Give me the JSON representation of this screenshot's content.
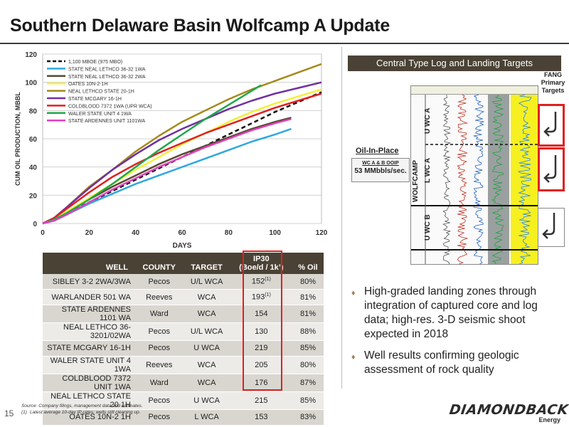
{
  "page": {
    "title": "Southern Delaware Basin Wolfcamp A Update",
    "page_number": "15"
  },
  "chart_data": {
    "type": "line",
    "xlabel": "DAYS",
    "ylabel": "CUM OIL PRODUCTION, MBBL",
    "xlim": [
      0,
      120
    ],
    "ylim": [
      0,
      120
    ],
    "xticks": [
      0,
      20,
      40,
      60,
      80,
      100,
      120
    ],
    "yticks": [
      0,
      20,
      40,
      60,
      80,
      100,
      120
    ],
    "grid": true,
    "legend_position": "top-left",
    "series": [
      {
        "name": "1,100 MBOE (975 MBO)",
        "color": "#111111",
        "dashed": true,
        "points": [
          [
            0,
            0
          ],
          [
            5,
            3
          ],
          [
            10,
            7
          ],
          [
            20,
            15
          ],
          [
            30,
            23
          ],
          [
            40,
            31
          ],
          [
            50,
            39
          ],
          [
            60,
            47
          ],
          [
            70,
            55
          ],
          [
            80,
            63
          ],
          [
            90,
            71
          ],
          [
            100,
            79
          ],
          [
            110,
            86
          ],
          [
            120,
            93
          ]
        ]
      },
      {
        "name": "STATE NEAL LETHCO 36-32 1WA",
        "color": "#2ea8e0",
        "points": [
          [
            0,
            0
          ],
          [
            5,
            2
          ],
          [
            10,
            6
          ],
          [
            20,
            14
          ],
          [
            30,
            21
          ],
          [
            40,
            28
          ],
          [
            50,
            34
          ],
          [
            60,
            40
          ],
          [
            70,
            46
          ],
          [
            80,
            52
          ],
          [
            90,
            58
          ],
          [
            100,
            63
          ],
          [
            107,
            67
          ]
        ]
      },
      {
        "name": "STATE NEAL LETHCO 36-32 2WA",
        "color": "#5a4a32",
        "points": [
          [
            0,
            0
          ],
          [
            5,
            3
          ],
          [
            10,
            8
          ],
          [
            20,
            17
          ],
          [
            30,
            26
          ],
          [
            40,
            34
          ],
          [
            50,
            42
          ],
          [
            60,
            49
          ],
          [
            70,
            55
          ],
          [
            80,
            61
          ],
          [
            90,
            67
          ],
          [
            100,
            72
          ],
          [
            107,
            75
          ]
        ]
      },
      {
        "name": "OATES 10N-2-1H",
        "color": "#f2f03a",
        "points": [
          [
            0,
            0
          ],
          [
            5,
            3
          ],
          [
            10,
            8
          ],
          [
            20,
            18
          ],
          [
            30,
            28
          ],
          [
            40,
            38
          ],
          [
            50,
            47
          ],
          [
            60,
            56
          ],
          [
            70,
            64
          ],
          [
            80,
            72
          ],
          [
            90,
            79
          ],
          [
            100,
            85
          ],
          [
            110,
            90
          ],
          [
            120,
            95
          ]
        ]
      },
      {
        "name": "NEAL LETHCO STATE 20-1H",
        "color": "#a68a1c",
        "points": [
          [
            0,
            0
          ],
          [
            5,
            4
          ],
          [
            10,
            11
          ],
          [
            20,
            26
          ],
          [
            30,
            38
          ],
          [
            40,
            51
          ],
          [
            50,
            62
          ],
          [
            60,
            72
          ],
          [
            70,
            80
          ],
          [
            80,
            88
          ],
          [
            90,
            95
          ],
          [
            100,
            101
          ],
          [
            110,
            107
          ],
          [
            120,
            113
          ]
        ]
      },
      {
        "name": "STATE MCGARY 16-1H",
        "color": "#7030a0",
        "points": [
          [
            0,
            0
          ],
          [
            5,
            4
          ],
          [
            10,
            11
          ],
          [
            20,
            25
          ],
          [
            30,
            38
          ],
          [
            40,
            49
          ],
          [
            50,
            59
          ],
          [
            60,
            67
          ],
          [
            70,
            74
          ],
          [
            80,
            81
          ],
          [
            90,
            87
          ],
          [
            100,
            92
          ],
          [
            110,
            96
          ],
          [
            120,
            100
          ]
        ]
      },
      {
        "name": "COLDBLOOD 7372 1WA (UPR WCA)",
        "color": "#e02020",
        "points": [
          [
            0,
            0
          ],
          [
            5,
            4
          ],
          [
            10,
            10
          ],
          [
            20,
            22
          ],
          [
            30,
            33
          ],
          [
            40,
            42
          ],
          [
            50,
            50
          ],
          [
            60,
            57
          ],
          [
            70,
            64
          ],
          [
            80,
            70
          ],
          [
            90,
            76
          ],
          [
            100,
            82
          ],
          [
            110,
            87
          ],
          [
            120,
            92
          ]
        ]
      },
      {
        "name": "WALER STATE UNIT 4 1WA",
        "color": "#1fa84a",
        "points": [
          [
            0,
            0
          ],
          [
            5,
            3
          ],
          [
            10,
            7
          ],
          [
            20,
            17
          ],
          [
            30,
            28
          ],
          [
            40,
            40
          ],
          [
            50,
            52
          ],
          [
            60,
            63
          ],
          [
            70,
            74
          ],
          [
            80,
            84
          ],
          [
            90,
            94
          ],
          [
            94,
            98
          ]
        ]
      },
      {
        "name": "STATE ARDENNES UNIT 1101WA",
        "color": "#e040c0",
        "points": [
          [
            0,
            0
          ],
          [
            5,
            2
          ],
          [
            10,
            6
          ],
          [
            20,
            15
          ],
          [
            30,
            24
          ],
          [
            40,
            32
          ],
          [
            50,
            40
          ],
          [
            60,
            47
          ],
          [
            70,
            54
          ],
          [
            80,
            60
          ],
          [
            90,
            66
          ],
          [
            100,
            71
          ],
          [
            107,
            74
          ]
        ]
      }
    ]
  },
  "table": {
    "headers": {
      "well": "WELL",
      "county": "COUNTY",
      "target": "TARGET",
      "ip30_line1": "IP30",
      "ip30_line2": "(Boe/d / 1k’)",
      "oil": "% Oil"
    },
    "rows": [
      {
        "well": "SIBLEY 3-2 2WA/3WA",
        "county": "Pecos",
        "target": "U/L WCA",
        "ip30": "152",
        "ip30_note": "(1)",
        "oil": "80%"
      },
      {
        "well": "WARLANDER 501 WA",
        "county": "Reeves",
        "target": "WCA",
        "ip30": "193",
        "ip30_note": "(1)",
        "oil": "81%"
      },
      {
        "well": "STATE ARDENNES 1101 WA",
        "county": "Ward",
        "target": "WCA",
        "ip30": "154",
        "ip30_note": "",
        "oil": "81%"
      },
      {
        "well": "NEAL LETHCO 36-3201/02WA",
        "county": "Pecos",
        "target": "U/L WCA",
        "ip30": "130",
        "ip30_note": "",
        "oil": "88%"
      },
      {
        "well": "STATE MCGARY 16-1H",
        "county": "Pecos",
        "target": "U WCA",
        "ip30": "219",
        "ip30_note": "",
        "oil": "85%"
      },
      {
        "well": "WALER STATE UNIT 4 1WA",
        "county": "Reeves",
        "target": "WCA",
        "ip30": "205",
        "ip30_note": "",
        "oil": "80%"
      },
      {
        "well": "COLDBLOOD 7372 UNIT 1WA",
        "county": "Ward",
        "target": "WCA",
        "ip30": "176",
        "ip30_note": "",
        "oil": "87%"
      },
      {
        "well": "NEAL LETHCO STATE 20 1H",
        "county": "Pecos",
        "target": "U WCA",
        "ip30": "215",
        "ip30_note": "",
        "oil": "85%"
      },
      {
        "well": "OATES 10N-2 1H",
        "county": "Pecos",
        "target": "L WCA",
        "ip30": "153",
        "ip30_note": "",
        "oil": "83%"
      }
    ]
  },
  "footnotes": {
    "source": "Source:  Company filings, management data and estimates.",
    "note1_label": "(1)",
    "note1": "Latest average 10-day IP-rates; wells still cleaning up."
  },
  "type_log": {
    "header": "Central Type Log and Landing Targets",
    "fang_label_line1": "FANG",
    "fang_label_line2": "Primary",
    "fang_label_line3": "Targets",
    "wolfcamp": "WOLFCAMP",
    "zones": [
      "U WC A",
      "L WC A",
      "U WC B"
    ],
    "oip_title": "Oil-In-Place",
    "oip_small": "WC A & B OOIP",
    "oip_value": "53 MMbbls/sec."
  },
  "bullets": [
    "High-graded landing zones through integration of captured core and log data; high-res. 3-D seismic shoot expected in 2018",
    "Well results confirming geologic assessment of rock quality"
  ],
  "logo": {
    "main": "DIAMONDBACK",
    "sub": "Energy"
  },
  "colors": {
    "header_brown": "#4a4234",
    "highlight_red": "#e02020",
    "bullet_tan": "#a0825a"
  }
}
